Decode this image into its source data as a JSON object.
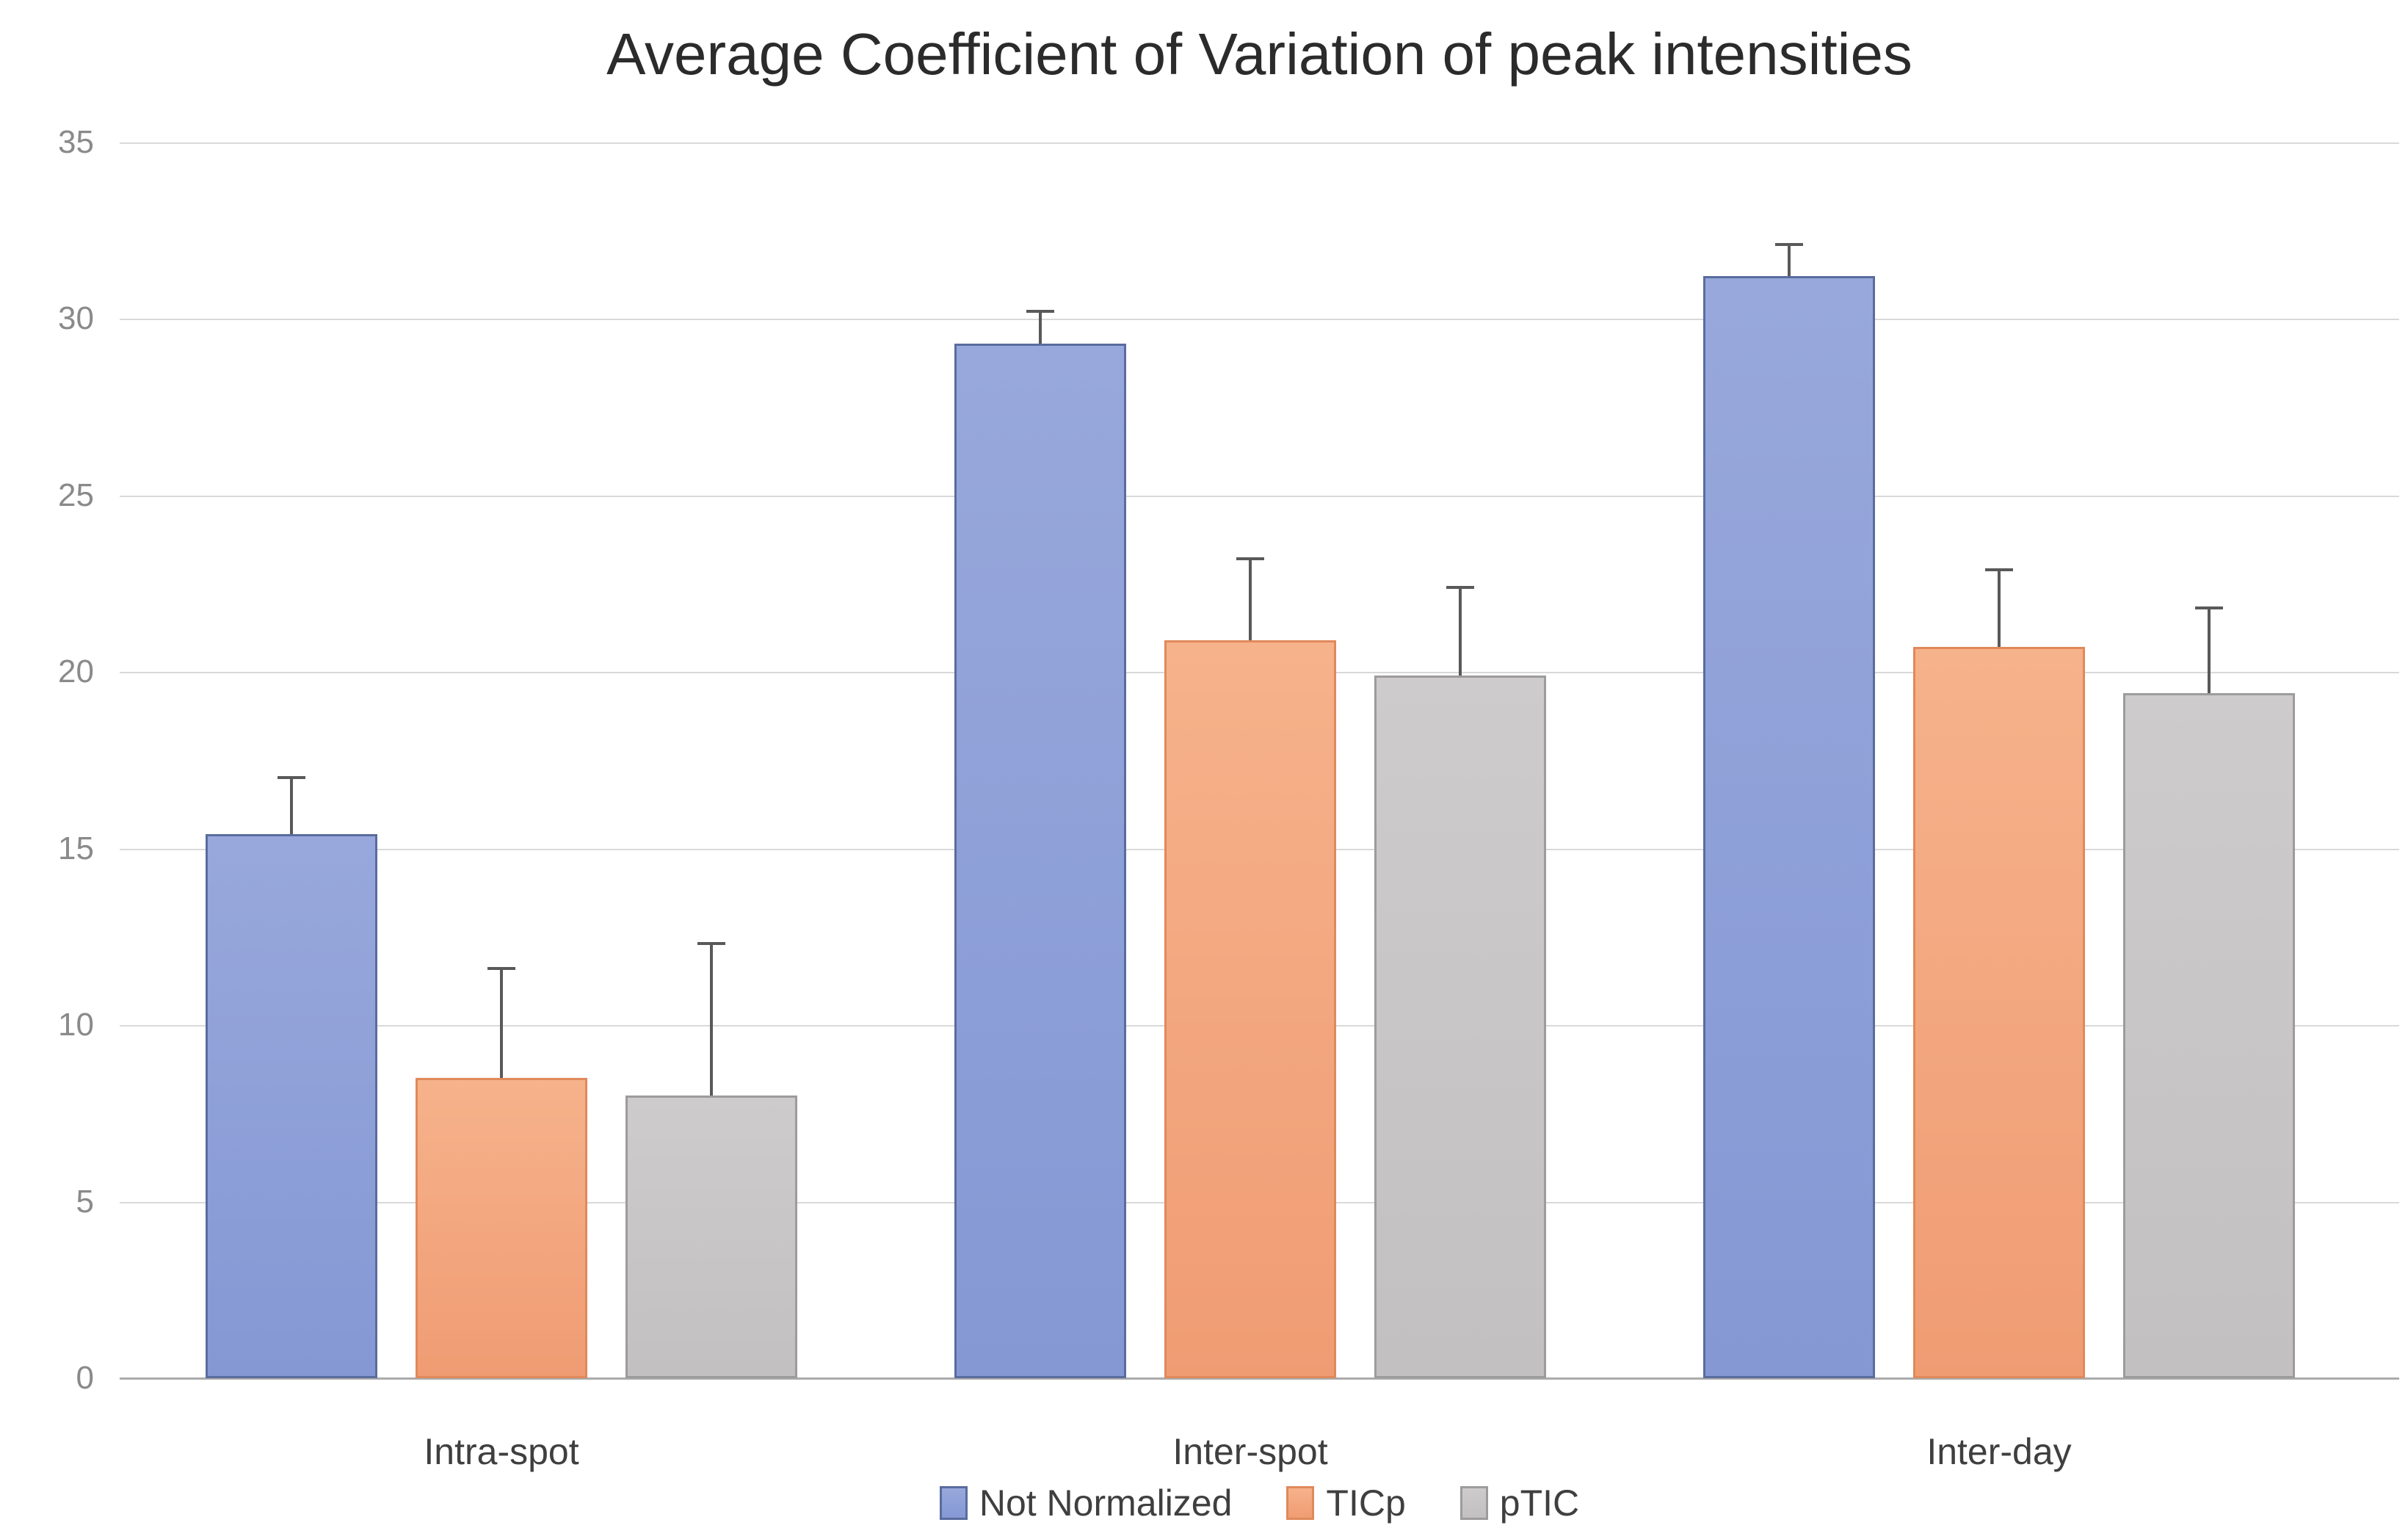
{
  "title": "Average Coefficient of Variation of peak intensities",
  "chart_data": {
    "type": "bar",
    "title": "Average Coefficient of Variation of peak intensities",
    "categories": [
      "Intra-spot",
      "Inter-spot",
      "Inter-day"
    ],
    "series": [
      {
        "name": "Not Normalized",
        "values": [
          15.4,
          29.3,
          31.2
        ],
        "error_up": [
          1.6,
          0.9,
          0.9
        ],
        "fill_top": "#98a8dc",
        "fill_bottom": "#8598d4",
        "border": "#5a6c9e"
      },
      {
        "name": "TICp",
        "values": [
          8.5,
          20.9,
          20.7
        ],
        "error_up": [
          3.1,
          2.3,
          2.2
        ],
        "fill_top": "#f6b28b",
        "fill_bottom": "#f09c73",
        "border": "#e0895b"
      },
      {
        "name": "pTIC",
        "values": [
          8.0,
          19.9,
          19.4
        ],
        "error_up": [
          4.3,
          2.5,
          2.4
        ],
        "fill_top": "#cdcbcb",
        "fill_bottom": "#c2c0c0",
        "border": "#9d9b9b"
      }
    ],
    "xlabel": "",
    "ylabel": "",
    "ylim": [
      0,
      35
    ],
    "yticks": [
      0,
      5,
      10,
      15,
      20,
      25,
      30,
      35
    ],
    "grid": true,
    "legend_position": "bottom",
    "error_bar_color": "#595959",
    "gridline_color": "#d9d9d9",
    "axis_line_color": "#ababab",
    "tick_label_color": "#8a8a8a",
    "category_label_color": "#3f3f3f",
    "title_color": "#2b2b2b",
    "background_color": "#ffffff"
  }
}
